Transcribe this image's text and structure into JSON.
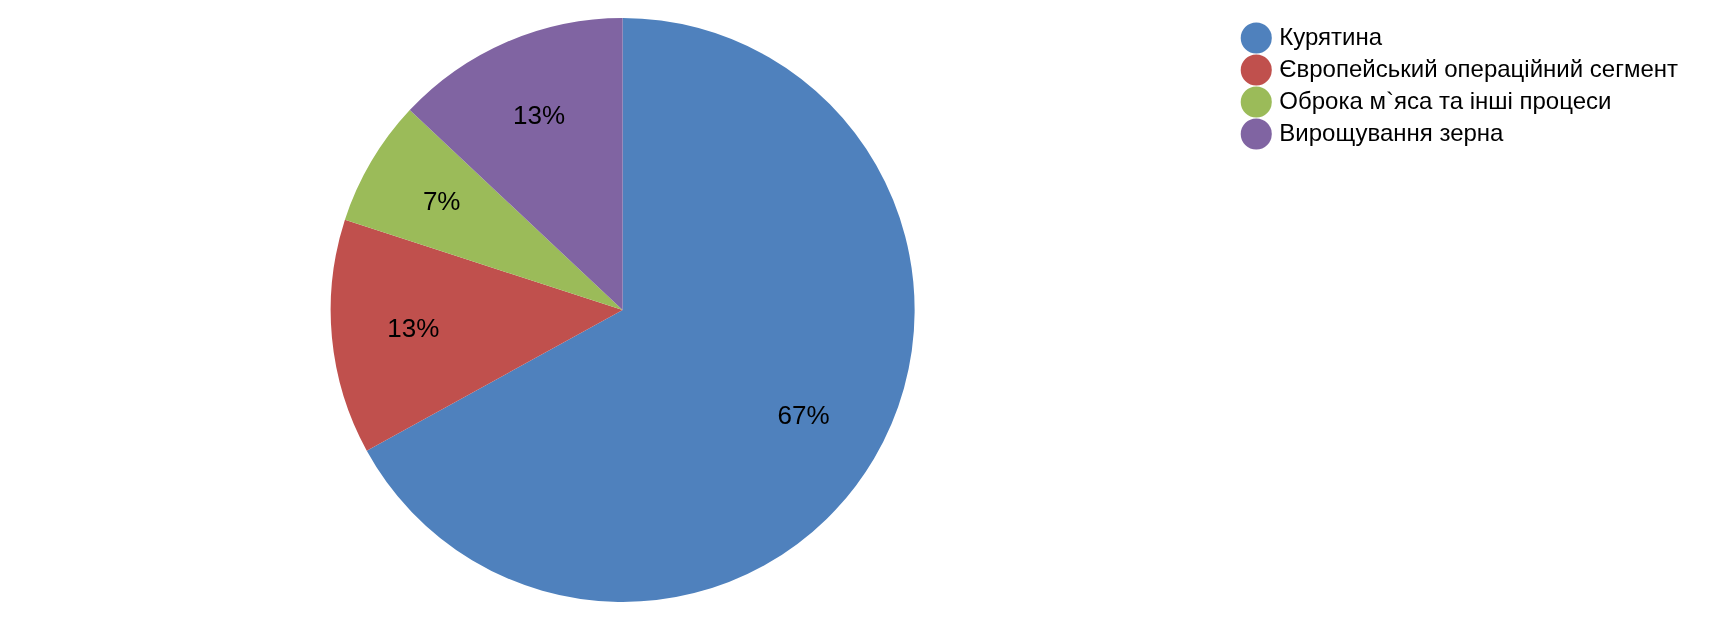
{
  "chart_data": {
    "type": "pie",
    "categories": [
      "Курятина",
      "Європейський операційний сегмент",
      "Оброка м`яса та інші процеси",
      "Вирощування зерна"
    ],
    "values": [
      67,
      13,
      7,
      13
    ],
    "value_labels": [
      "67%",
      "13%",
      "7%",
      "13%"
    ],
    "colors": [
      "#4f81bd",
      "#c0504d",
      "#9bbb59",
      "#8064a2"
    ],
    "legend": "top right"
  }
}
